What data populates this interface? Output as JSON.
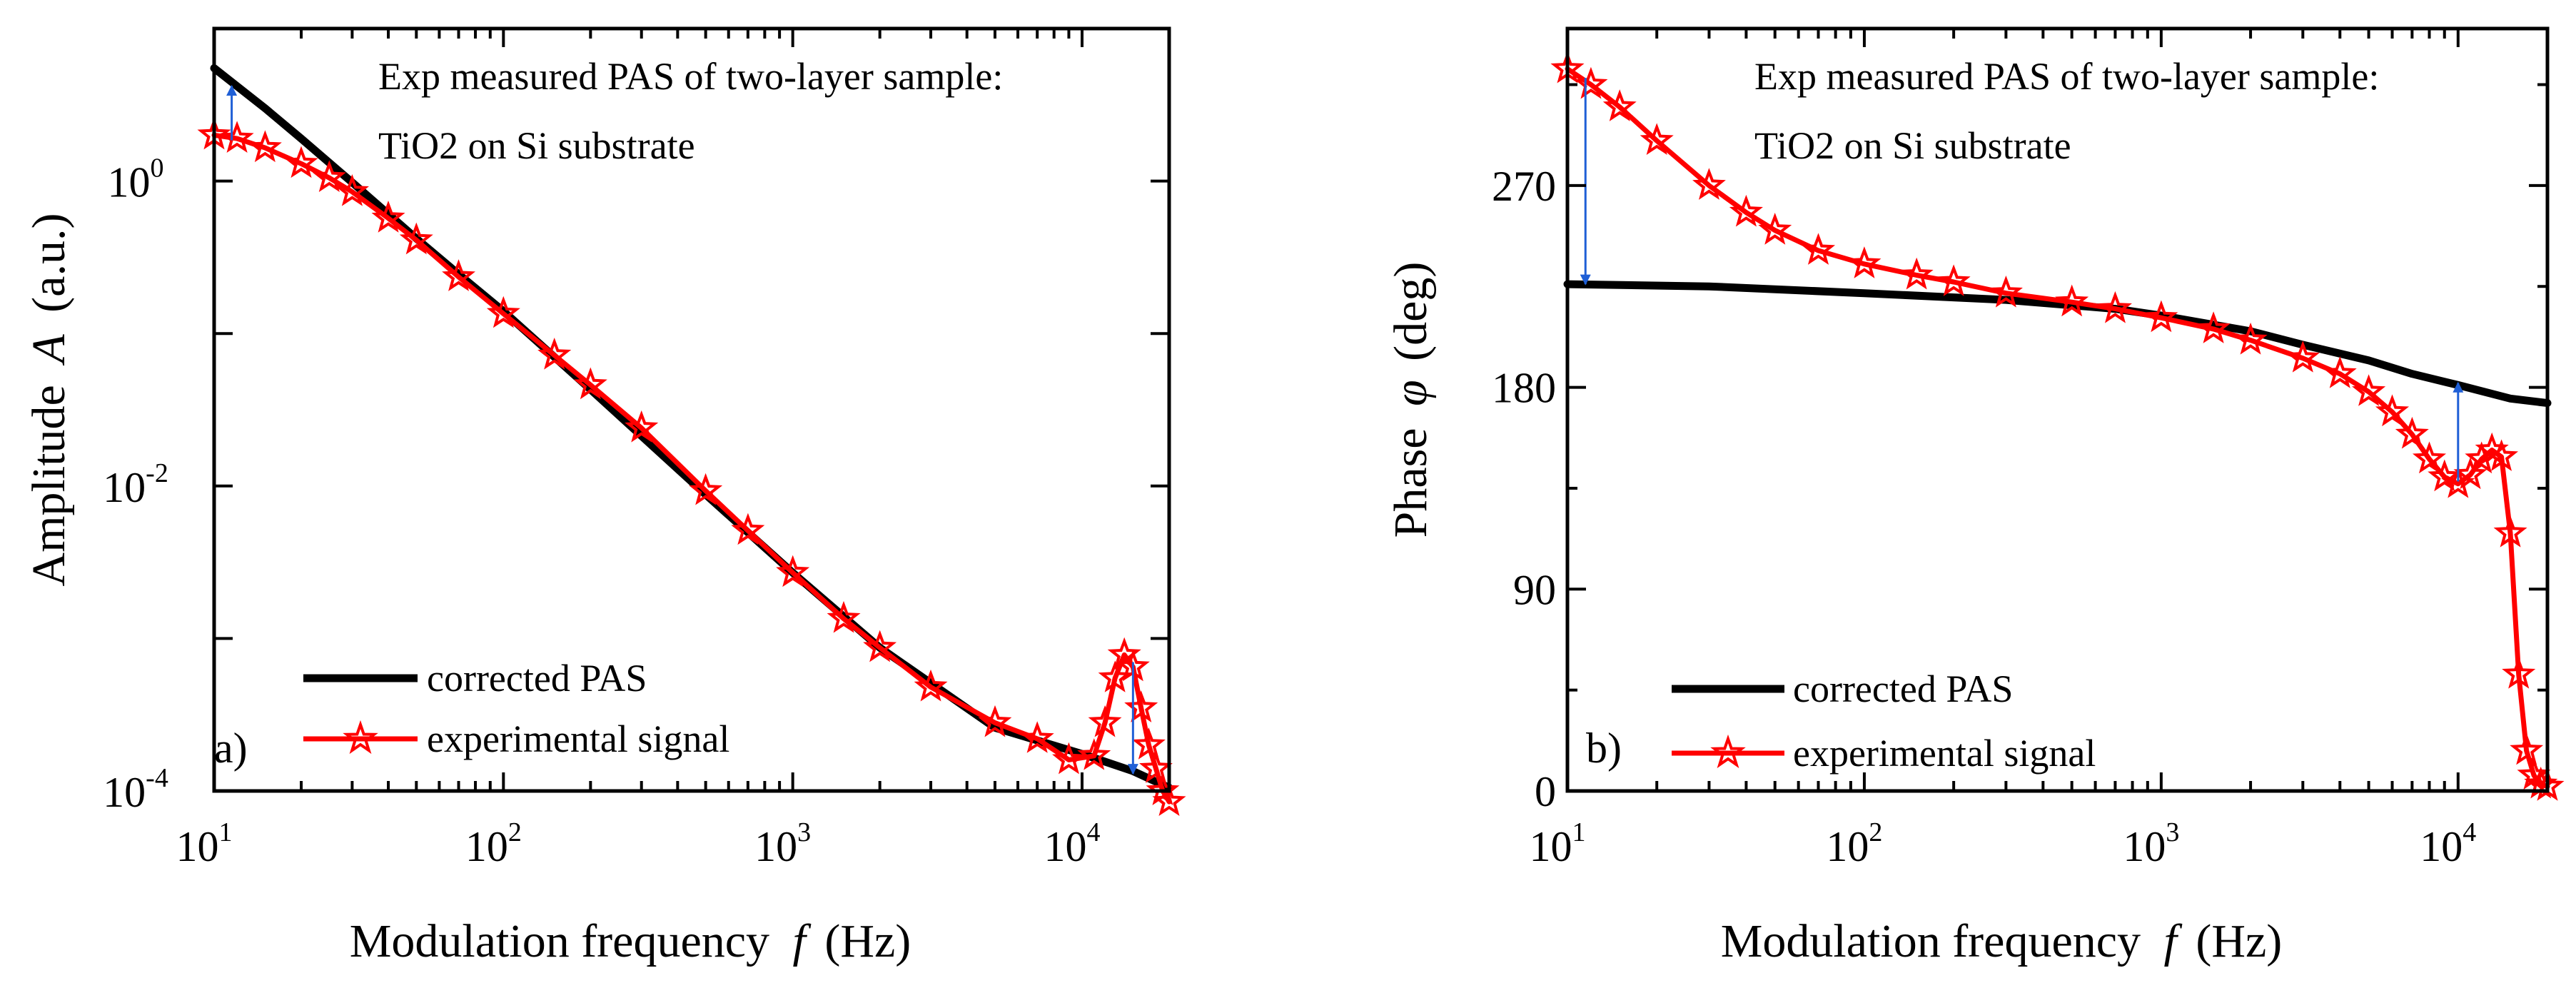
{
  "chart_data": [
    {
      "type": "line",
      "panel_label": "a)",
      "title": "",
      "xlabel": "Modulation frequency",
      "xlabel_symbol": "f",
      "xlabel_unit": "(Hz)",
      "ylabel": "Amplitude",
      "ylabel_symbol": "A",
      "ylabel_unit": "(a.u.)",
      "xscale": "log",
      "yscale": "log",
      "xlim": [
        10,
        20000
      ],
      "ylim": [
        0.0001,
        10
      ],
      "x_ticks": [
        {
          "value": 10,
          "base": "10",
          "exp": "1"
        },
        {
          "value": 100,
          "base": "10",
          "exp": "2"
        },
        {
          "value": 1000,
          "base": "10",
          "exp": "3"
        },
        {
          "value": 10000,
          "base": "10",
          "exp": "4"
        }
      ],
      "y_ticks": [
        {
          "value": 1,
          "base": "10",
          "exp": "0"
        },
        {
          "value": 0.01,
          "base": "10",
          "exp": "-2"
        },
        {
          "value": 0.0001,
          "base": "10",
          "exp": "-4"
        }
      ],
      "annotation_lines": [
        "Exp measured PAS of two-layer sample:",
        "TiO2 on Si substrate"
      ],
      "legend_position": "bottom-left",
      "series": [
        {
          "name": "corrected PAS",
          "color": "#000000",
          "marker": "none",
          "x": [
            10,
            15,
            20,
            30,
            50,
            70,
            100,
            200,
            500,
            1000,
            2000,
            5000,
            10000,
            15000,
            20000
          ],
          "y": [
            5.5,
            3.0,
            1.9,
            0.98,
            0.42,
            0.245,
            0.14,
            0.043,
            0.0088,
            0.0027,
            0.00087,
            0.00026,
            0.000175,
            0.000135,
            0.000105
          ]
        },
        {
          "name": "experimental signal",
          "color": "#ff0000",
          "marker": "star",
          "x": [
            10,
            12,
            15,
            20,
            25,
            30,
            40,
            50,
            70,
            100,
            150,
            200,
            300,
            500,
            700,
            1000,
            1500,
            2000,
            3000,
            5000,
            7000,
            9000,
            11000,
            12000,
            13000,
            14000,
            15000,
            16000,
            17000,
            18000,
            19000,
            20000
          ],
          "y": [
            2.0,
            1.9,
            1.65,
            1.3,
            1.05,
            0.85,
            0.57,
            0.41,
            0.235,
            0.135,
            0.072,
            0.046,
            0.024,
            0.0093,
            0.0051,
            0.0027,
            0.00135,
            0.00087,
            0.00048,
            0.00028,
            0.00022,
            0.00016,
            0.00017,
            0.00028,
            0.00055,
            0.00078,
            0.00065,
            0.00035,
            0.0002,
            0.00014,
            0.0001,
            8.5e-05
          ]
        }
      ],
      "arrows": [
        {
          "x": 11.5,
          "y_from": 1.85,
          "y_to": 4.2,
          "color": "#1f5fd6"
        },
        {
          "x": 15000,
          "y_from": 0.0007,
          "y_to": 0.00013,
          "color": "#1f5fd6"
        }
      ]
    },
    {
      "type": "line",
      "panel_label": "b)",
      "title": "",
      "xlabel": "Modulation frequency",
      "xlabel_symbol": "f",
      "xlabel_unit": "(Hz)",
      "ylabel": "Phase",
      "ylabel_symbol": "φ",
      "ylabel_unit": "(deg)",
      "xscale": "log",
      "yscale": "linear",
      "xlim": [
        10,
        20000
      ],
      "ylim": [
        0,
        340
      ],
      "x_ticks": [
        {
          "value": 10,
          "base": "10",
          "exp": "1"
        },
        {
          "value": 100,
          "base": "10",
          "exp": "2"
        },
        {
          "value": 1000,
          "base": "10",
          "exp": "3"
        },
        {
          "value": 10000,
          "base": "10",
          "exp": "4"
        }
      ],
      "y_ticks": [
        {
          "value": 0,
          "label": "0"
        },
        {
          "value": 90,
          "label": "90"
        },
        {
          "value": 180,
          "label": "180"
        },
        {
          "value": 270,
          "label": "270"
        }
      ],
      "annotation_lines": [
        "Exp measured PAS of two-layer sample:",
        "TiO2 on Si substrate"
      ],
      "legend_position": "bottom-left",
      "series": [
        {
          "name": "corrected PAS",
          "color": "#000000",
          "marker": "none",
          "x": [
            10,
            30,
            100,
            300,
            700,
            1000,
            2000,
            3000,
            5000,
            7000,
            10000,
            15000,
            20000
          ],
          "y": [
            226,
            225,
            222,
            219,
            215,
            212,
            205,
            199,
            192,
            186,
            181,
            175,
            173
          ]
        },
        {
          "name": "experimental signal",
          "color": "#ff0000",
          "marker": "star",
          "x": [
            10,
            12,
            15,
            20,
            30,
            40,
            50,
            70,
            100,
            150,
            200,
            300,
            500,
            700,
            1000,
            1500,
            2000,
            3000,
            4000,
            5000,
            6000,
            7000,
            8000,
            9000,
            10000,
            11000,
            12000,
            13000,
            14000,
            15000,
            16000,
            17000,
            18000,
            19000,
            20000
          ],
          "y": [
            322,
            315,
            305,
            290,
            270,
            258,
            250,
            241,
            235,
            230,
            227,
            222,
            218,
            215,
            211,
            206,
            201,
            193,
            186,
            178,
            169,
            159,
            148,
            140,
            137,
            141,
            148,
            152,
            149,
            115,
            52,
            18,
            7,
            3,
            2
          ]
        }
      ],
      "arrows": [
        {
          "x": 11.5,
          "y_from": 318,
          "y_to": 226,
          "color": "#1f5fd6"
        },
        {
          "x": 10000,
          "y_from": 138,
          "y_to": 182,
          "color": "#1f5fd6"
        }
      ]
    }
  ]
}
